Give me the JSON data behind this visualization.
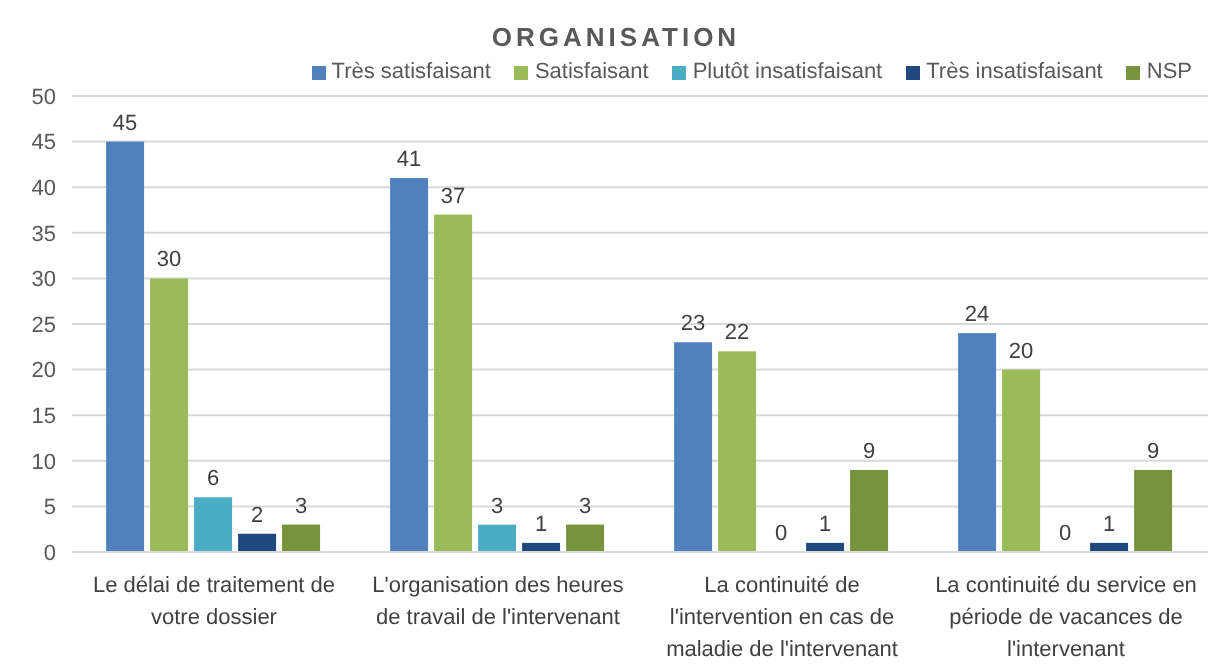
{
  "chart_data": {
    "type": "bar",
    "title": "ORGANISATION",
    "categories": [
      "Le délai de traitement de votre dossier",
      "L'organisation des heures de travail de l'intervenant",
      "La continuité de l'intervention en cas de maladie de l'intervenant",
      "La continuité du service en période de vacances de l'intervenant"
    ],
    "series": [
      {
        "name": "Très satisfaisant",
        "color": "#4f81bd",
        "values": [
          45,
          41,
          23,
          24
        ]
      },
      {
        "name": "Satisfaisant",
        "color": "#9bbb59",
        "values": [
          30,
          37,
          22,
          20
        ]
      },
      {
        "name": "Plutôt insatisfaisant",
        "color": "#4bacc6",
        "values": [
          6,
          3,
          0,
          0
        ]
      },
      {
        "name": "Très insatisfaisant",
        "color": "#1f497d",
        "values": [
          2,
          1,
          1,
          1
        ]
      },
      {
        "name": "NSP",
        "color": "#77933c",
        "values": [
          3,
          3,
          9,
          9
        ]
      }
    ],
    "ylim": [
      0,
      50
    ],
    "yticks": [
      0,
      5,
      10,
      15,
      20,
      25,
      30,
      35,
      40,
      45,
      50
    ],
    "grid": "y",
    "legend": "top right",
    "data_labels": true
  }
}
